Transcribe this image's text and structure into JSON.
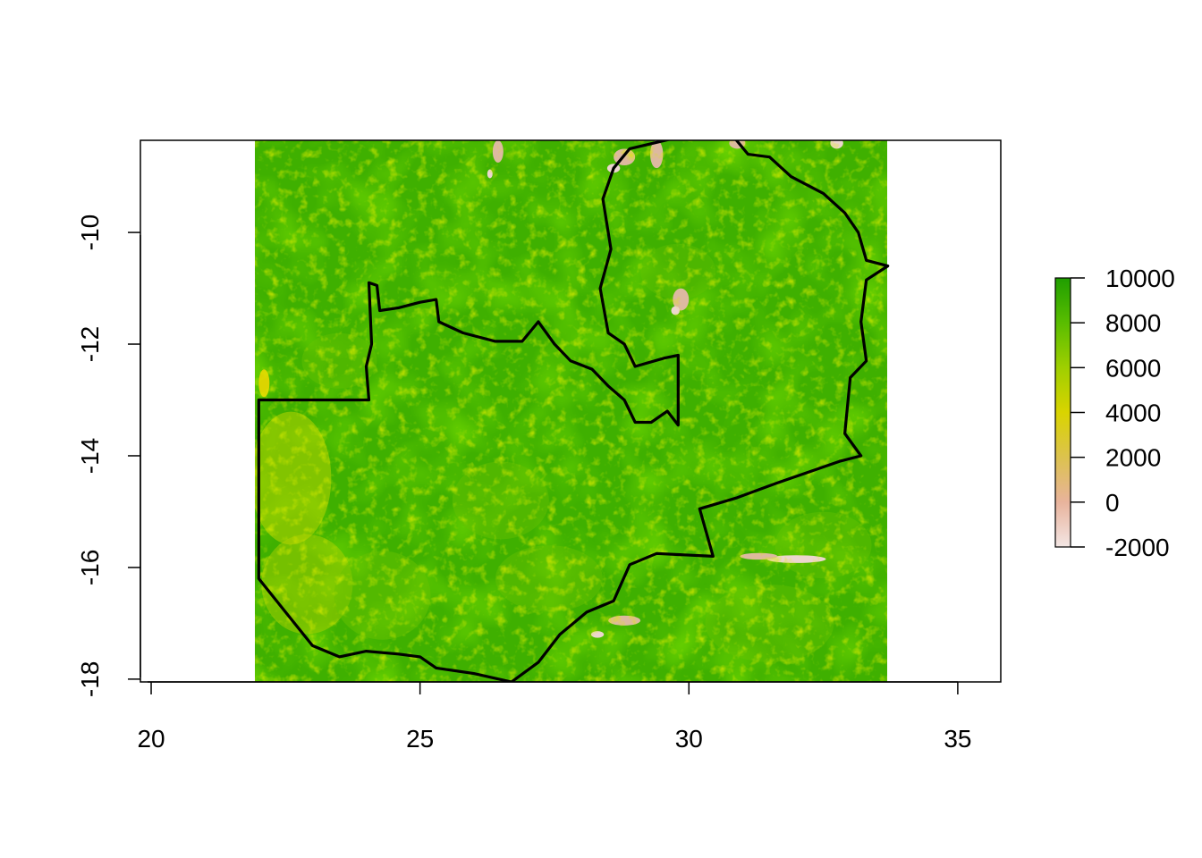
{
  "chart_data": {
    "type": "heatmap",
    "title": "",
    "xlabel": "",
    "ylabel": "",
    "xlim": [
      19.8,
      35.8
    ],
    "ylim": [
      -18.05,
      -8.35
    ],
    "raster_extent": {
      "xmin": 22.0,
      "xmax": 33.7,
      "ymin": -18.05,
      "ymax": -8.35
    },
    "x_ticks": [
      "20",
      "25",
      "30",
      "35"
    ],
    "y_ticks": [
      "-10",
      "-12",
      "-14",
      "-16",
      "-18"
    ],
    "x_tick_values": [
      20,
      25,
      30,
      35
    ],
    "y_tick_values": [
      -10,
      -12,
      -14,
      -16,
      -18
    ],
    "legend": {
      "placement": "right",
      "min": -2000,
      "max": 10000,
      "ticks": [
        "10000",
        "8000",
        "6000",
        "4000",
        "2000",
        "0",
        "-2000"
      ],
      "tick_values": [
        10000,
        8000,
        6000,
        4000,
        2000,
        0,
        -2000
      ],
      "colors": [
        "#f3e6e4",
        "#e8b39c",
        "#dcc24e",
        "#d9d400",
        "#9fcf00",
        "#59bd00",
        "#1f9e00"
      ]
    },
    "colors": {
      "dominant_green": "#3fb000",
      "mid_green": "#68c200",
      "yellow_green": "#b9d500",
      "yellow": "#dcd400",
      "tan": "#ddb9a0",
      "light_pink": "#ecd6d0",
      "boundary": "#000000"
    },
    "boundary_lonlat": [
      [
        22.0,
        -13.0
      ],
      [
        24.05,
        -13.0
      ],
      [
        24.0,
        -12.4
      ],
      [
        24.1,
        -12.0
      ],
      [
        24.05,
        -10.9
      ],
      [
        24.2,
        -10.95
      ],
      [
        24.25,
        -11.4
      ],
      [
        24.6,
        -11.35
      ],
      [
        25.0,
        -11.25
      ],
      [
        25.3,
        -11.2
      ],
      [
        25.35,
        -11.6
      ],
      [
        25.8,
        -11.8
      ],
      [
        26.4,
        -11.95
      ],
      [
        26.9,
        -11.95
      ],
      [
        27.2,
        -11.6
      ],
      [
        27.5,
        -12.0
      ],
      [
        27.8,
        -12.3
      ],
      [
        28.2,
        -12.45
      ],
      [
        28.5,
        -12.75
      ],
      [
        28.8,
        -13.0
      ],
      [
        29.0,
        -13.4
      ],
      [
        29.3,
        -13.4
      ],
      [
        29.6,
        -13.2
      ],
      [
        29.8,
        -13.45
      ],
      [
        29.8,
        -12.2
      ],
      [
        29.55,
        -12.25
      ],
      [
        29.0,
        -12.4
      ],
      [
        28.8,
        -12.0
      ],
      [
        28.5,
        -11.8
      ],
      [
        28.35,
        -11.0
      ],
      [
        28.55,
        -10.3
      ],
      [
        28.4,
        -9.4
      ],
      [
        28.6,
        -8.85
      ],
      [
        28.9,
        -8.5
      ],
      [
        30.0,
        -8.25
      ],
      [
        30.8,
        -8.25
      ],
      [
        31.1,
        -8.6
      ],
      [
        31.5,
        -8.65
      ],
      [
        31.9,
        -9.0
      ],
      [
        32.5,
        -9.3
      ],
      [
        32.9,
        -9.65
      ],
      [
        33.15,
        -10.0
      ],
      [
        33.3,
        -10.5
      ],
      [
        33.7,
        -10.6
      ],
      [
        33.3,
        -10.85
      ],
      [
        33.2,
        -11.6
      ],
      [
        33.3,
        -12.3
      ],
      [
        33.0,
        -12.6
      ],
      [
        32.9,
        -13.6
      ],
      [
        33.2,
        -14.0
      ],
      [
        32.8,
        -14.1
      ],
      [
        31.6,
        -14.5
      ],
      [
        30.9,
        -14.75
      ],
      [
        30.2,
        -14.95
      ],
      [
        30.45,
        -15.8
      ],
      [
        29.4,
        -15.75
      ],
      [
        28.9,
        -15.95
      ],
      [
        28.6,
        -16.6
      ],
      [
        28.1,
        -16.8
      ],
      [
        27.6,
        -17.2
      ],
      [
        27.2,
        -17.7
      ],
      [
        26.7,
        -18.05
      ],
      [
        26.0,
        -17.9
      ],
      [
        25.3,
        -17.8
      ],
      [
        25.0,
        -17.6
      ],
      [
        24.6,
        -17.55
      ],
      [
        24.0,
        -17.5
      ],
      [
        23.5,
        -17.6
      ],
      [
        23.0,
        -17.4
      ],
      [
        22.5,
        -16.8
      ],
      [
        22.0,
        -16.2
      ],
      [
        22.0,
        -13.0
      ]
    ],
    "annotations": []
  }
}
